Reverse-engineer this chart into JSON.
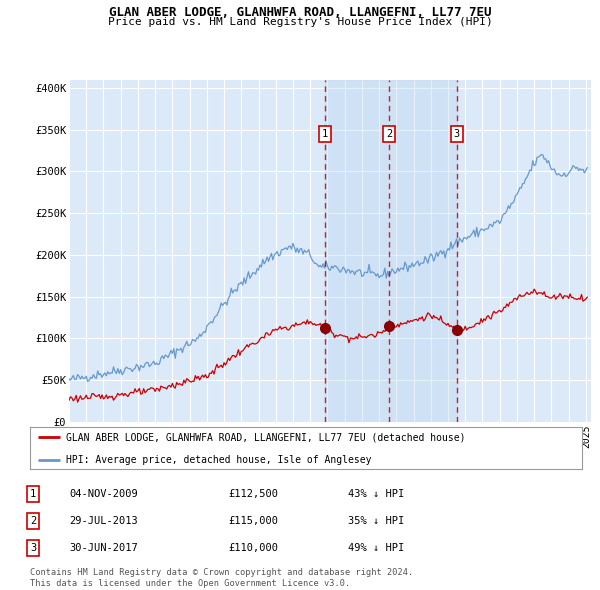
{
  "title": "GLAN ABER LODGE, GLANHWFA ROAD, LLANGEFNI, LL77 7EU",
  "subtitle": "Price paid vs. HM Land Registry's House Price Index (HPI)",
  "legend_label_red": "GLAN ABER LODGE, GLANHWFA ROAD, LLANGEFNI, LL77 7EU (detached house)",
  "legend_label_blue": "HPI: Average price, detached house, Isle of Anglesey",
  "footer_line1": "Contains HM Land Registry data © Crown copyright and database right 2024.",
  "footer_line2": "This data is licensed under the Open Government Licence v3.0.",
  "transactions": [
    {
      "num": 1,
      "date": "04-NOV-2009",
      "price": "£112,500",
      "pct": "43% ↓ HPI"
    },
    {
      "num": 2,
      "date": "29-JUL-2013",
      "price": "£115,000",
      "pct": "35% ↓ HPI"
    },
    {
      "num": 3,
      "date": "30-JUN-2017",
      "price": "£110,000",
      "pct": "49% ↓ HPI"
    }
  ],
  "sale_prices": [
    112500,
    115000,
    110000
  ],
  "sale_dates_decimal": [
    2009.843,
    2013.572,
    2017.497
  ],
  "bg_color": "#dce9f8",
  "grid_color": "#ffffff",
  "red_line_color": "#cc0000",
  "blue_line_color": "#6699cc",
  "vline_color": "#cc0000",
  "dot_color": "#880000",
  "span_color": "#b8d4f0",
  "ylim": [
    0,
    410000
  ],
  "yticks": [
    0,
    50000,
    100000,
    150000,
    200000,
    250000,
    300000,
    350000,
    400000
  ],
  "ytick_labels": [
    "£0",
    "£50K",
    "£100K",
    "£150K",
    "£200K",
    "£250K",
    "£300K",
    "£350K",
    "£400K"
  ],
  "xlim_start": 1995.0,
  "xlim_end": 2025.3,
  "hpi_key_x": [
    1995.0,
    1997.0,
    2000.0,
    2002.5,
    2004.5,
    2006.5,
    2007.8,
    2009.0,
    2009.5,
    2010.5,
    2011.5,
    2013.0,
    2014.5,
    2016.0,
    2017.5,
    2019.0,
    2020.0,
    2021.0,
    2022.0,
    2022.5,
    2023.0,
    2023.5,
    2024.0,
    2024.5,
    2025.0
  ],
  "hpi_key_y": [
    50000,
    58000,
    70000,
    100000,
    155000,
    195000,
    210000,
    200000,
    185000,
    185000,
    180000,
    175000,
    185000,
    195000,
    215000,
    230000,
    240000,
    270000,
    310000,
    320000,
    305000,
    295000,
    300000,
    305000,
    300000
  ],
  "prop_key_x": [
    1995.0,
    1997.0,
    2000.0,
    2003.0,
    2005.0,
    2007.0,
    2009.0,
    2009.843,
    2010.5,
    2011.5,
    2013.0,
    2013.572,
    2014.5,
    2016.0,
    2017.497,
    2018.0,
    2019.0,
    2020.0,
    2021.0,
    2022.0,
    2022.5,
    2023.0,
    2023.5,
    2024.0,
    2025.0
  ],
  "prop_key_y": [
    28000,
    30000,
    38000,
    55000,
    85000,
    110000,
    120000,
    112500,
    105000,
    100000,
    105000,
    115000,
    118000,
    128000,
    110000,
    112000,
    122000,
    132000,
    148000,
    158000,
    153000,
    148000,
    152000,
    150000,
    148000
  ]
}
